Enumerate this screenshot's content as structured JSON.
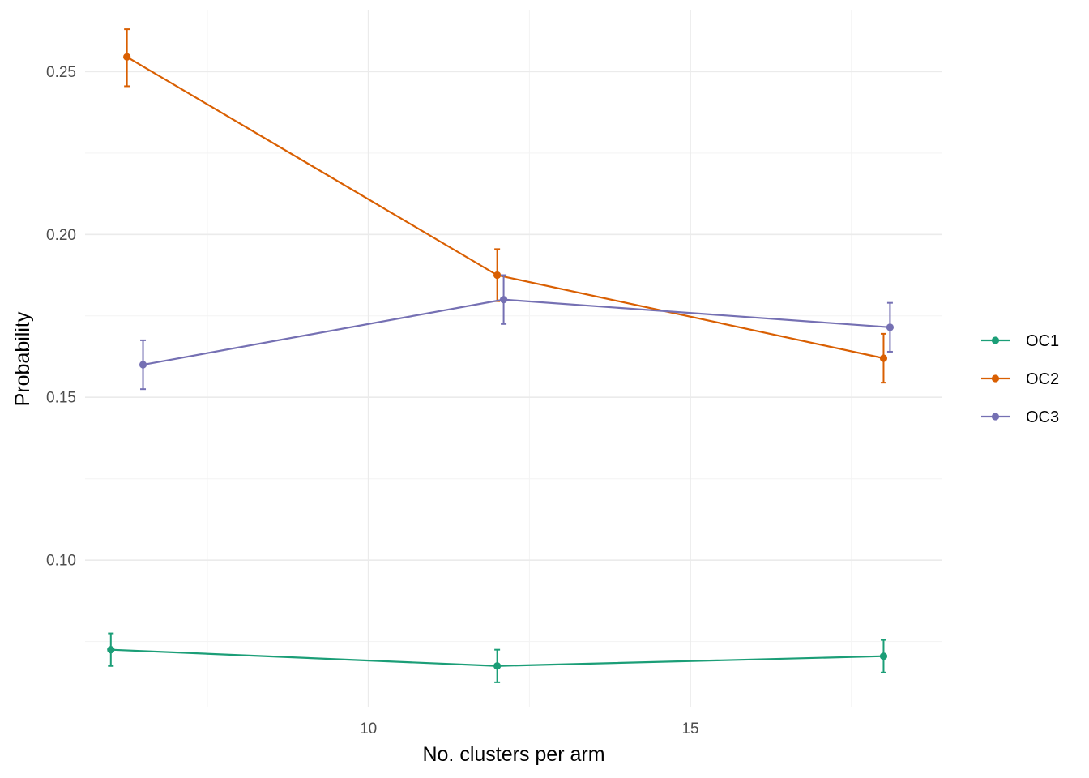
{
  "chart_data": {
    "type": "line",
    "xlabel": "No. clusters per arm",
    "ylabel": "Probability",
    "xlim": [
      5.6,
      18.9
    ],
    "ylim": [
      0.055,
      0.269
    ],
    "x_ticks": [
      10,
      15
    ],
    "x_tick_labels": [
      "10",
      "15"
    ],
    "y_ticks": [
      0.1,
      0.15,
      0.2,
      0.25
    ],
    "y_tick_labels": [
      "0.10",
      "0.15",
      "0.20",
      "0.25"
    ],
    "grid": true,
    "legend_position": "right",
    "series": [
      {
        "name": "OC1",
        "color": "#1b9e77",
        "x": [
          6.0,
          12.0,
          18.0
        ],
        "y": [
          0.0725,
          0.0675,
          0.0705
        ],
        "lower": [
          0.0675,
          0.0625,
          0.0655
        ],
        "upper": [
          0.0775,
          0.0725,
          0.0755
        ]
      },
      {
        "name": "OC2",
        "color": "#d95f02",
        "x": [
          6.25,
          12.0,
          18.0
        ],
        "y": [
          0.2545,
          0.1875,
          0.162
        ],
        "lower": [
          0.2455,
          0.1795,
          0.1545
        ],
        "upper": [
          0.263,
          0.1955,
          0.1695
        ]
      },
      {
        "name": "OC3",
        "color": "#7570b3",
        "x": [
          6.5,
          12.1,
          18.1
        ],
        "y": [
          0.16,
          0.18,
          0.1715
        ],
        "lower": [
          0.1525,
          0.1725,
          0.164
        ],
        "upper": [
          0.1675,
          0.1875,
          0.179
        ]
      }
    ]
  }
}
